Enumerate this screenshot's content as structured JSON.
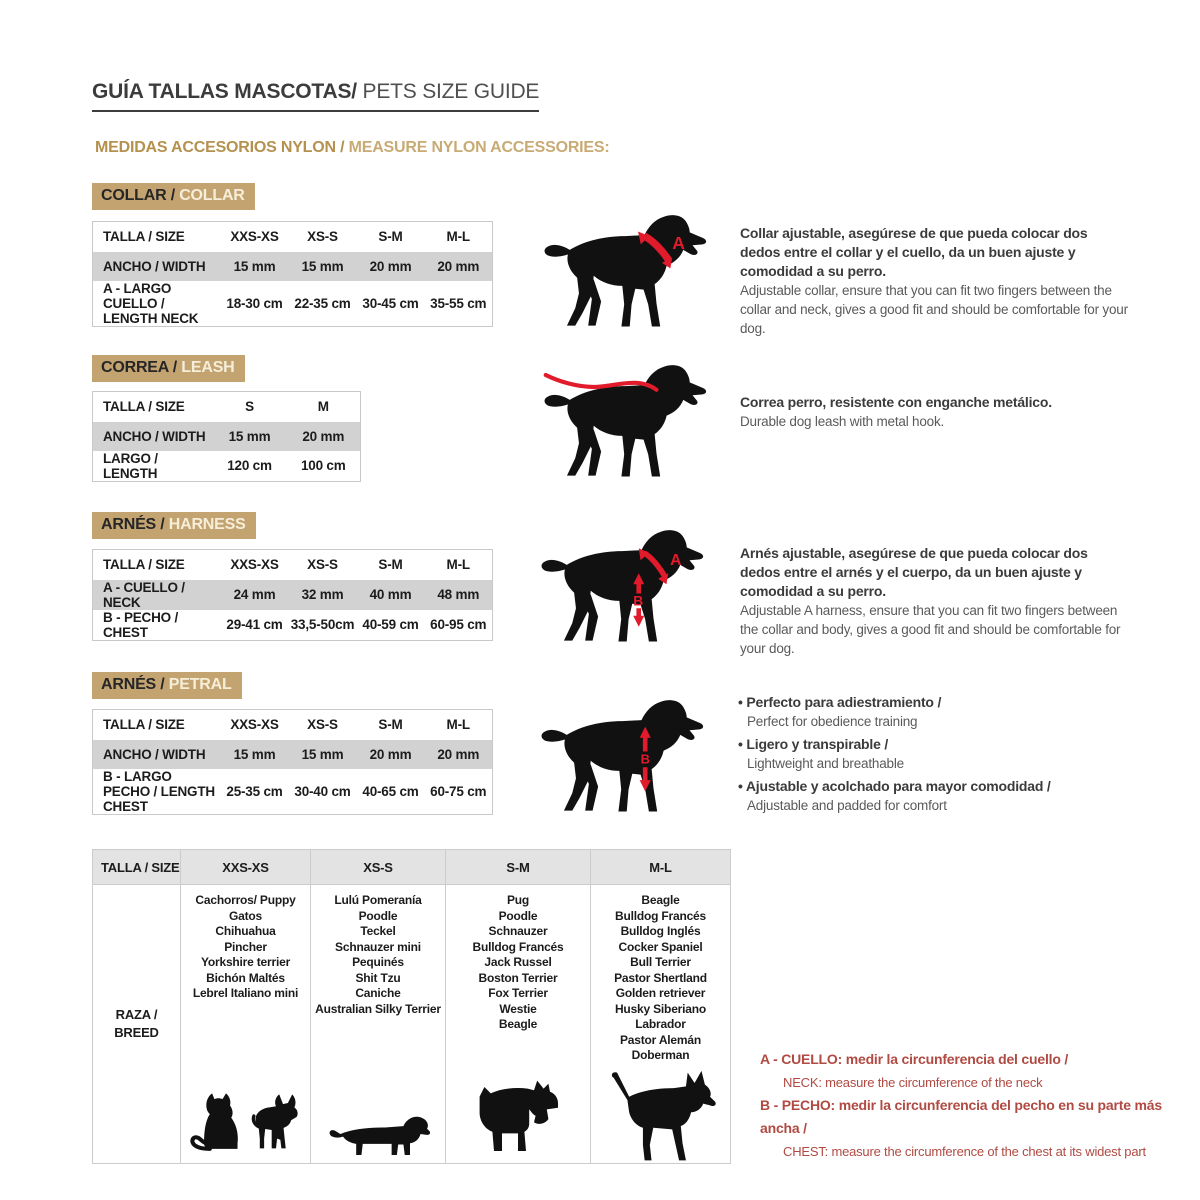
{
  "page": {
    "title_es": "GUÍA TALLAS MASCOTAS/",
    "title_en": " PETS SIZE GUIDE",
    "subtitle_es": "MEDIDAS ACCESORIOS NYLON /",
    "subtitle_en": " MEASURE NYLON ACCESSORIES:"
  },
  "colors": {
    "badge_tan": "#c3a471",
    "marker_red": "#e11b2b",
    "note_red": "#b04a42",
    "row_gray": "#d2d2d2",
    "header_gray": "#e3e3e3"
  },
  "markers": {
    "neck": "A",
    "chest": "B"
  },
  "collar": {
    "badge_es": "COLLAR /",
    "badge_en": " COLLAR",
    "row_size": {
      "label": "TALLA / SIZE",
      "v": [
        "XXS-XS",
        "XS-S",
        "S-M",
        "M-L"
      ]
    },
    "row_width": {
      "label": "ANCHO / WIDTH",
      "v": [
        "15 mm",
        "15 mm",
        "20 mm",
        "20 mm"
      ]
    },
    "row_neck": {
      "label": "A - LARGO CUELLO / LENGTH NECK",
      "v": [
        "18-30 cm",
        "22-35 cm",
        "30-45 cm",
        "35-55 cm"
      ]
    },
    "desc_es": "Collar ajustable, asegúrese de que pueda colocar dos dedos entre el collar y el cuello, da un buen ajuste y comodidad a su perro.",
    "desc_en": "Adjustable collar, ensure that you can fit two fingers between the collar and neck, gives a good fit and should be comfortable for your dog."
  },
  "correa": {
    "badge_es": "CORREA /",
    "badge_en": " LEASH",
    "row_size": {
      "label": "TALLA / SIZE",
      "v": [
        "S",
        "M"
      ]
    },
    "row_width": {
      "label": "ANCHO / WIDTH",
      "v": [
        "15 mm",
        "20 mm"
      ]
    },
    "row_length": {
      "label": "LARGO / LENGTH",
      "v": [
        "120 cm",
        "100 cm"
      ]
    },
    "desc_es": "Correa perro, resistente con enganche metálico.",
    "desc_en": "Durable dog leash with metal hook."
  },
  "harness": {
    "badge_es": "ARNÉS /",
    "badge_en": " HARNESS",
    "row_size": {
      "label": "TALLA / SIZE",
      "v": [
        "XXS-XS",
        "XS-S",
        "S-M",
        "M-L"
      ]
    },
    "row_neck": {
      "label": "A - CUELLO / NECK",
      "v": [
        "24 mm",
        "32 mm",
        "40 mm",
        "48 mm"
      ]
    },
    "row_chest": {
      "label": "B - PECHO / CHEST",
      "v": [
        "29-41 cm",
        "33,5-50cm",
        "40-59 cm",
        "60-95 cm"
      ]
    },
    "desc_es": "Arnés ajustable, asegúrese de que pueda colocar dos dedos entre el arnés y el cuerpo, da un buen ajuste y comodidad a su perro.",
    "desc_en": "Adjustable A harness, ensure that you can fit two fingers between the collar and body, gives a good fit and should be comfortable for your dog."
  },
  "petral": {
    "badge_es": "ARNÉS /",
    "badge_en": " PETRAL",
    "row_size": {
      "label": "TALLA / SIZE",
      "v": [
        "XXS-XS",
        "XS-S",
        "S-M",
        "M-L"
      ]
    },
    "row_width": {
      "label": "ANCHO / WIDTH",
      "v": [
        "15 mm",
        "15 mm",
        "20 mm",
        "20 mm"
      ]
    },
    "row_chest": {
      "label": "B - LARGO PECHO / LENGTH CHEST",
      "v": [
        "25-35 cm",
        "30-40 cm",
        "40-65 cm",
        "60-75 cm"
      ]
    },
    "bullets": [
      {
        "es": "Perfecto para adiestramiento /",
        "en": "Perfect for obedience training"
      },
      {
        "es": "Ligero y transpirable /",
        "en": "Lightweight and breathable"
      },
      {
        "es": "Ajustable y acolchado para mayor comodidad /",
        "en": "Adjustable and padded for comfort"
      }
    ]
  },
  "breeds": {
    "header": {
      "label": "TALLA /  SIZE",
      "sizes": [
        "XXS-XS",
        "XS-S",
        "S-M",
        "M-L"
      ]
    },
    "row_label": "RAZA / BREED",
    "xxs_xs": [
      "Cachorros/ Puppy",
      "Gatos",
      "Chihuahua",
      "Pincher",
      "Yorkshire terrier",
      "Bichón Maltés",
      "Lebrel Italiano mini"
    ],
    "xs_s": [
      "Lulú Pomeranía",
      "Poodle",
      "Teckel",
      "Schnauzer mini",
      "Pequinés",
      "Shit Tzu",
      "Caniche",
      "Australian Silky Terrier"
    ],
    "s_m": [
      "Pug",
      "Poodle",
      "Schnauzer",
      "Bulldog Francés",
      "Jack Russel",
      "Boston Terrier",
      "Fox Terrier",
      "Westie",
      "Beagle"
    ],
    "m_l": [
      "Beagle",
      "Bulldog Francés",
      "Bulldog Inglés",
      "Cocker Spaniel",
      "Bull Terrier",
      "Pastor Shertland",
      "Golden retriever",
      "Husky Siberiano",
      "Labrador",
      "Pastor Alemán",
      "Doberman"
    ]
  },
  "notes": {
    "a_es": "A - CUELLO: medir la circunferencia del cuello /",
    "a_en": "NECK: measure the circumference of the neck",
    "b_es": "B - PECHO: medir la circunferencia del pecho en su parte más ancha /",
    "b_en": "CHEST: measure the circumference of the chest at its widest part"
  }
}
